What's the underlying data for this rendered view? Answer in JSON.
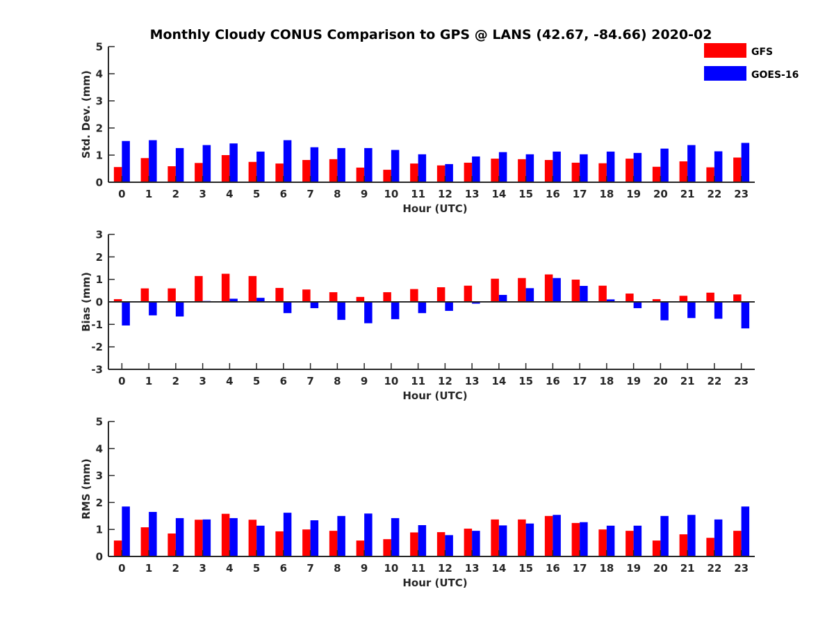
{
  "title": "Monthly Cloudy CONUS Comparison to GPS @ LANS (42.67, -84.66) 2020-02",
  "legend": {
    "placement": "top-right",
    "entries": [
      {
        "name": "GFS",
        "color": "#ff0000"
      },
      {
        "name": "GOES-16",
        "color": "#0000ff"
      }
    ]
  },
  "chart_data": [
    {
      "type": "bar",
      "xlabel": "Hour (UTC)",
      "ylabel": "Std. Dev. (mm)",
      "ylim": [
        0,
        5
      ],
      "yticks": [
        0,
        1,
        2,
        3,
        4,
        5
      ],
      "categories": [
        "0",
        "1",
        "2",
        "3",
        "4",
        "5",
        "6",
        "7",
        "8",
        "9",
        "10",
        "11",
        "12",
        "13",
        "14",
        "15",
        "16",
        "17",
        "18",
        "19",
        "20",
        "21",
        "22",
        "23"
      ],
      "series": [
        {
          "name": "GFS",
          "color": "#ff0000",
          "values": [
            0.56,
            0.89,
            0.59,
            0.71,
            1.0,
            0.75,
            0.69,
            0.82,
            0.85,
            0.54,
            0.46,
            0.69,
            0.62,
            0.72,
            0.87,
            0.85,
            0.82,
            0.72,
            0.7,
            0.87,
            0.57,
            0.77,
            0.55,
            0.91
          ]
        },
        {
          "name": "GOES-16",
          "color": "#0000ff",
          "values": [
            1.52,
            1.55,
            1.26,
            1.37,
            1.43,
            1.13,
            1.55,
            1.29,
            1.26,
            1.26,
            1.19,
            1.03,
            0.67,
            0.95,
            1.11,
            1.03,
            1.13,
            1.03,
            1.13,
            1.08,
            1.24,
            1.37,
            1.14,
            1.45
          ]
        }
      ]
    },
    {
      "type": "bar",
      "xlabel": "Hour (UTC)",
      "ylabel": "Bias (mm)",
      "ylim": [
        -3,
        3
      ],
      "yticks": [
        -3,
        -2,
        -1,
        0,
        1,
        2,
        3
      ],
      "zero_line": true,
      "categories": [
        "0",
        "1",
        "2",
        "3",
        "4",
        "5",
        "6",
        "7",
        "8",
        "9",
        "10",
        "11",
        "12",
        "13",
        "14",
        "15",
        "16",
        "17",
        "18",
        "19",
        "20",
        "21",
        "22",
        "23"
      ],
      "series": [
        {
          "name": "GFS",
          "color": "#ff0000",
          "values": [
            0.12,
            0.6,
            0.6,
            1.15,
            1.25,
            1.15,
            0.62,
            0.55,
            0.43,
            0.22,
            0.43,
            0.57,
            0.65,
            0.72,
            1.03,
            1.06,
            1.22,
            0.99,
            0.72,
            0.37,
            0.12,
            0.27,
            0.41,
            0.33
          ]
        },
        {
          "name": "GOES-16",
          "color": "#0000ff",
          "values": [
            -1.05,
            -0.6,
            -0.65,
            0.04,
            0.14,
            0.18,
            -0.5,
            -0.28,
            -0.8,
            -0.95,
            -0.77,
            -0.5,
            -0.4,
            -0.08,
            0.31,
            0.61,
            1.06,
            0.71,
            0.11,
            -0.28,
            -0.82,
            -0.72,
            -0.75,
            -1.18
          ]
        }
      ]
    },
    {
      "type": "bar",
      "xlabel": "Hour (UTC)",
      "ylabel": "RMS (mm)",
      "ylim": [
        0,
        5
      ],
      "yticks": [
        0,
        1,
        2,
        3,
        4,
        5
      ],
      "categories": [
        "0",
        "1",
        "2",
        "3",
        "4",
        "5",
        "6",
        "7",
        "8",
        "9",
        "10",
        "11",
        "12",
        "13",
        "14",
        "15",
        "16",
        "17",
        "18",
        "19",
        "20",
        "21",
        "22",
        "23"
      ],
      "series": [
        {
          "name": "GFS",
          "color": "#ff0000",
          "values": [
            0.59,
            1.08,
            0.85,
            1.36,
            1.58,
            1.36,
            0.93,
            1.0,
            0.95,
            0.59,
            0.64,
            0.89,
            0.9,
            1.03,
            1.37,
            1.37,
            1.5,
            1.24,
            1.0,
            0.95,
            0.59,
            0.82,
            0.69,
            0.95
          ]
        },
        {
          "name": "GOES-16",
          "color": "#0000ff",
          "values": [
            1.85,
            1.65,
            1.42,
            1.37,
            1.42,
            1.14,
            1.62,
            1.34,
            1.5,
            1.59,
            1.42,
            1.16,
            0.79,
            0.95,
            1.15,
            1.22,
            1.54,
            1.27,
            1.14,
            1.14,
            1.5,
            1.54,
            1.37,
            1.85
          ]
        }
      ]
    }
  ]
}
